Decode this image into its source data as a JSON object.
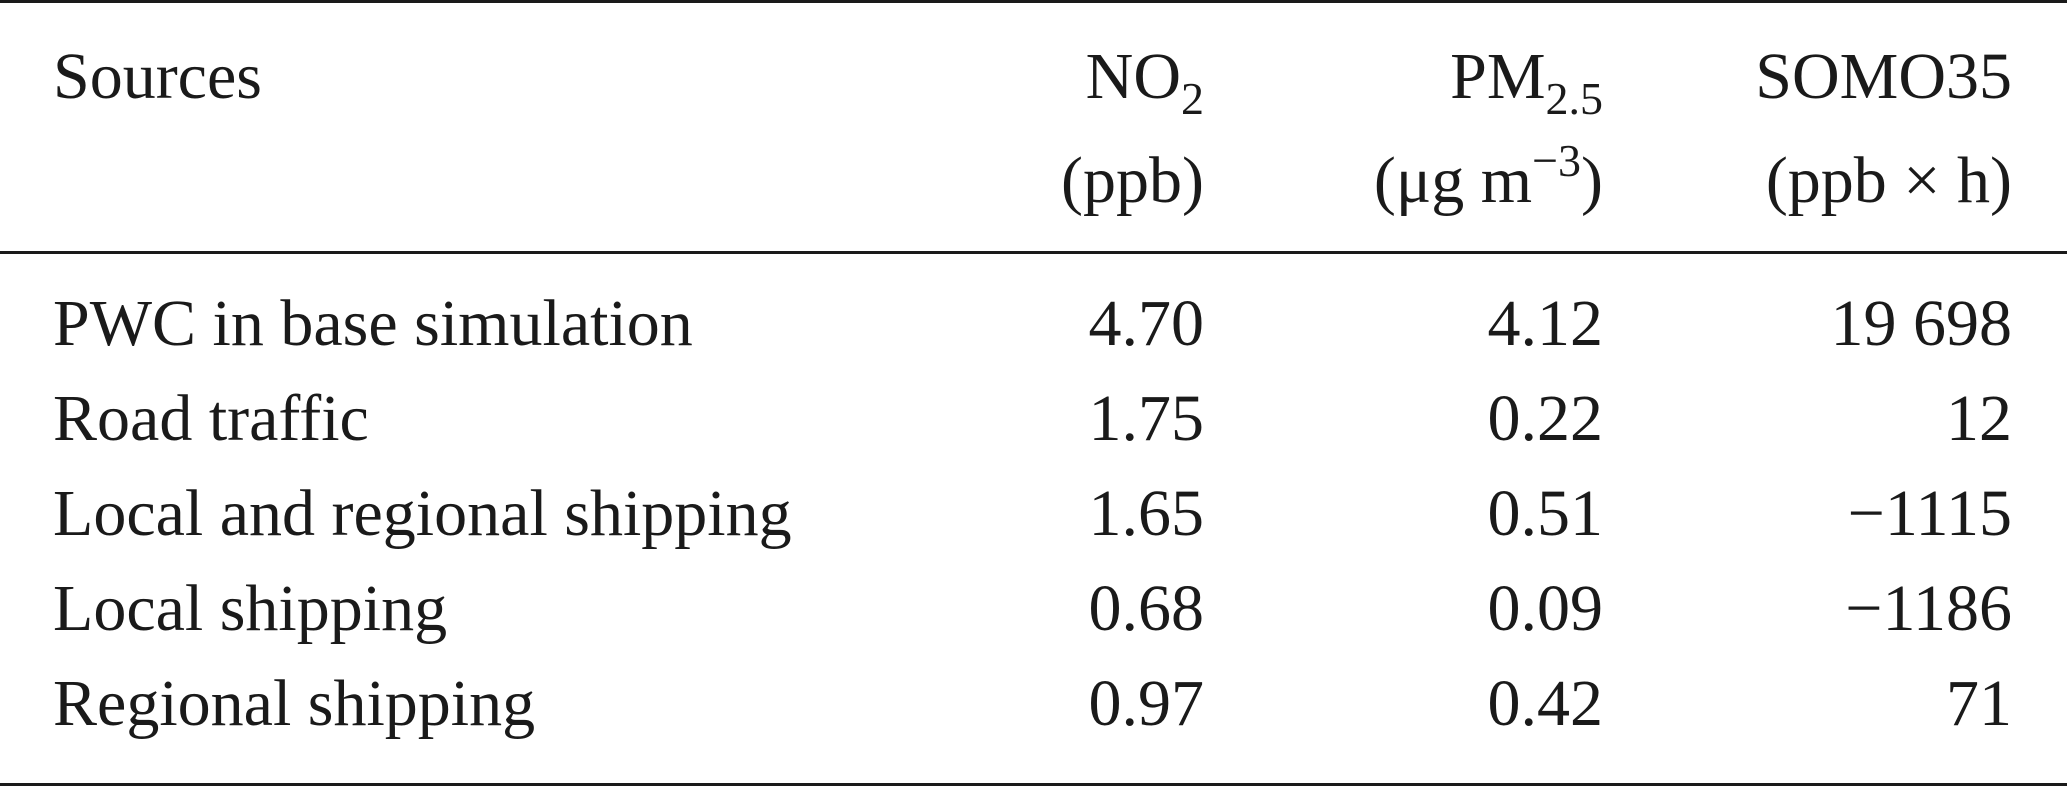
{
  "table": {
    "header": {
      "sources": "Sources",
      "no2": {
        "base": "NO",
        "sub": "2",
        "unit": "(ppb)"
      },
      "pm25": {
        "base": "PM",
        "sub": "2.5",
        "unit_pre": "(μg m",
        "unit_sup": "−3",
        "unit_post": ")"
      },
      "somo35": {
        "label": "SOMO35",
        "unit": "(ppb × h)"
      }
    },
    "rows": [
      {
        "source": "PWC in base simulation",
        "no2": "4.70",
        "pm25": "4.12",
        "somo35": "19 698"
      },
      {
        "source": "Road traffic",
        "no2": "1.75",
        "pm25": "0.22",
        "somo35": "12"
      },
      {
        "source": "Local and regional shipping",
        "no2": "1.65",
        "pm25": "0.51",
        "somo35": "−1115"
      },
      {
        "source": "Local shipping",
        "no2": "0.68",
        "pm25": "0.09",
        "somo35": "−1186"
      },
      {
        "source": "Regional shipping",
        "no2": "0.97",
        "pm25": "0.42",
        "somo35": "71"
      }
    ]
  }
}
